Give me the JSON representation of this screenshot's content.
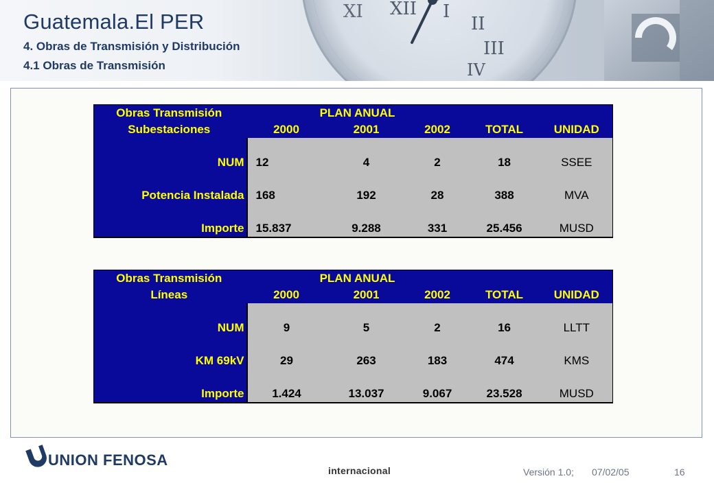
{
  "header": {
    "title": "Guatemala.El PER",
    "subtitle1": "4. Obras de Transmisión y Distribución",
    "subtitle2": "4.1 Obras de Transmisión",
    "clock_numerals": [
      "XII",
      "I",
      "II",
      "III",
      "IV",
      "XI"
    ]
  },
  "tables": [
    {
      "header_title": "Obras Transmisión",
      "header_plan": "PLAN ANUAL",
      "row_label": "Subestaciones",
      "columns": [
        "2000",
        "2001",
        "2002",
        "TOTAL",
        "UNIDAD"
      ],
      "rows": [
        {
          "label": "NUM",
          "values": [
            "12",
            "4",
            "2",
            "18"
          ],
          "unit": "SSEE"
        },
        {
          "label": "Potencia Instalada",
          "values": [
            "168",
            "192",
            "28",
            "388"
          ],
          "unit": "MVA"
        },
        {
          "label": "Importe",
          "values": [
            "15.837",
            "9.288",
            "331",
            "25.456"
          ],
          "unit": "MUSD"
        }
      ]
    },
    {
      "header_title": "Obras Transmisión",
      "header_plan": "PLAN ANUAL",
      "row_label": "Líneas",
      "columns": [
        "2000",
        "2001",
        "2002",
        "TOTAL",
        "UNIDAD"
      ],
      "rows": [
        {
          "label": "NUM",
          "values": [
            "9",
            "5",
            "2",
            "16"
          ],
          "unit": "LLTT"
        },
        {
          "label": "KM 69kV",
          "values": [
            "29",
            "263",
            "183",
            "474"
          ],
          "unit": "KMS"
        },
        {
          "label": "Importe",
          "values": [
            "1.424",
            "13.037",
            "9.067",
            "23.528"
          ],
          "unit": "MUSD"
        }
      ]
    }
  ],
  "footer": {
    "logo_text": "UNION FENOSA",
    "subbrand": "internacional",
    "version": "Versión 1.0;",
    "date": "07/02/05",
    "page": "16"
  },
  "colors": {
    "table_header_bg": "#0a0a9a",
    "table_header_text": "#ffff00",
    "table_value_bg": "#c0c0c0",
    "title_color": "#1f3a64"
  }
}
